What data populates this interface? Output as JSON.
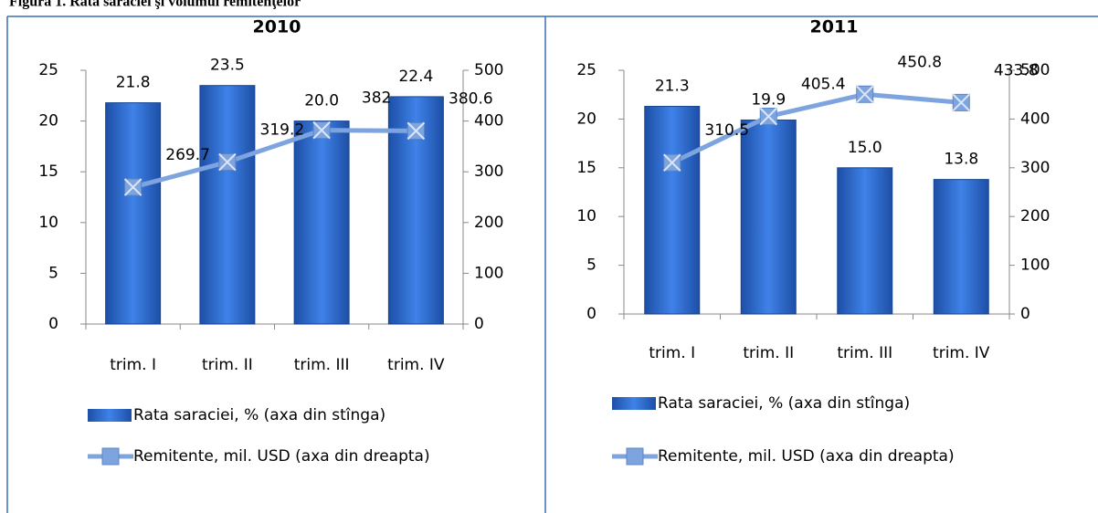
{
  "header": {
    "title": "Figura 1. Rata saraciei şi volumul remitenţelor"
  },
  "chart_data": [
    {
      "type": "bar",
      "title": "2010",
      "categories": [
        "trim. I",
        "trim. II",
        "trim. III",
        "trim. IV"
      ],
      "series": [
        {
          "name": "Rata saraciei, % (axa din stînga)",
          "type": "bar",
          "color": "#2f6dd0",
          "values": [
            21.8,
            23.5,
            20.0,
            22.4
          ],
          "value_labels": [
            "21.8",
            "23.5",
            "20.0",
            "22.4"
          ]
        },
        {
          "name": "Remitente, mil. USD (axa din dreapta)",
          "type": "line",
          "axis": "y2",
          "color": "#7ea4e0",
          "values": [
            269.7,
            319.2,
            382,
            380.6
          ]
        }
      ],
      "ylim": [
        0,
        25
      ],
      "yticks": [
        0,
        5,
        10,
        15,
        20,
        25
      ],
      "y2lim": [
        0,
        500
      ],
      "y2ticks": [
        0,
        100,
        200,
        300,
        400,
        500
      ]
    },
    {
      "type": "bar",
      "title": "2011",
      "categories": [
        "trim. I",
        "trim. II",
        "trim. III",
        "trim. IV"
      ],
      "series": [
        {
          "name": "Rata saraciei, % (axa din stînga)",
          "type": "bar",
          "color": "#2f6dd0",
          "values": [
            21.3,
            19.9,
            15.0,
            13.8
          ],
          "value_labels": [
            "21.3",
            "19.9",
            "15.0",
            "13.8"
          ]
        },
        {
          "name": "Remitente, mil. USD (axa din dreapta)",
          "type": "line",
          "axis": "y2",
          "color": "#7ea4e0",
          "values": [
            310.5,
            405.4,
            450.8,
            433.8
          ]
        }
      ],
      "ylim": [
        0,
        25
      ],
      "yticks": [
        0,
        5,
        10,
        15,
        20,
        25
      ],
      "y2lim": [
        0,
        500
      ],
      "y2ticks": [
        0,
        100,
        200,
        300,
        400,
        500
      ]
    }
  ]
}
